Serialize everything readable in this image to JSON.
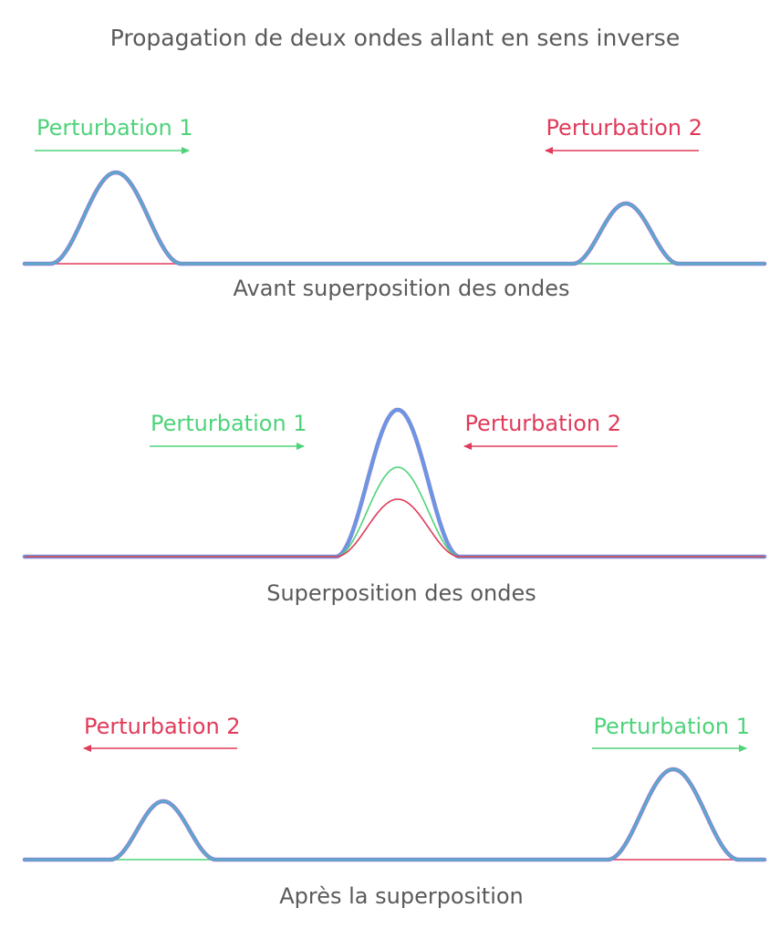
{
  "title": "Propagation de deux ondes allant en sens inverse",
  "colors": {
    "wave1": "#4ed37a",
    "wave2": "#e03b5a",
    "sum": "#6a96e6",
    "sum_outline": "#9a7fc0",
    "text": "#5a5a5a"
  },
  "panels": [
    {
      "caption": "Avant superposition des ondes",
      "labels": [
        {
          "text": "Perturbation 1",
          "wave": "wave1",
          "direction": "right"
        },
        {
          "text": "Perturbation 2",
          "wave": "wave2",
          "direction": "left"
        }
      ]
    },
    {
      "caption": "Superposition des ondes",
      "labels": [
        {
          "text": "Perturbation 1",
          "wave": "wave1",
          "direction": "right"
        },
        {
          "text": "Perturbation 2",
          "wave": "wave2",
          "direction": "left"
        }
      ]
    },
    {
      "caption": "Après la superposition",
      "labels": [
        {
          "text": "Perturbation 2",
          "wave": "wave2",
          "direction": "left"
        },
        {
          "text": "Perturbation 1",
          "wave": "wave1",
          "direction": "right"
        }
      ]
    }
  ]
}
